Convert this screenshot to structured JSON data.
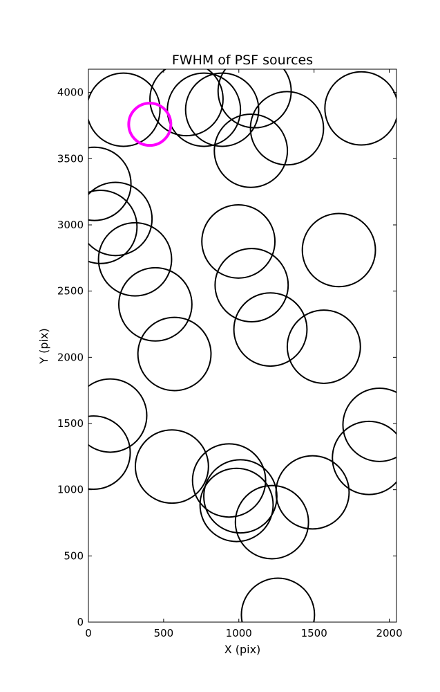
{
  "chart_data": {
    "type": "scatter",
    "title": "FWHM of PSF sources",
    "xlabel": "X (pix)",
    "ylabel": "Y (pix)",
    "xlim": [
      0,
      2048
    ],
    "ylim": [
      0,
      4176
    ],
    "xticks": [
      0,
      500,
      1000,
      1500,
      2000
    ],
    "yticks": [
      0,
      500,
      1000,
      1500,
      2000,
      2500,
      3000,
      3500,
      4000
    ],
    "grid": false,
    "marker": "open circle",
    "series": [
      {
        "color": "#000000",
        "points": [
          {
            "x": 233,
            "y": 3870,
            "r": 243
          },
          {
            "x": 652,
            "y": 3950,
            "r": 243
          },
          {
            "x": 768,
            "y": 3870,
            "r": 243
          },
          {
            "x": 889,
            "y": 3870,
            "r": 243
          },
          {
            "x": 1105,
            "y": 4010,
            "r": 243
          },
          {
            "x": 1320,
            "y": 3730,
            "r": 243
          },
          {
            "x": 1080,
            "y": 3560,
            "r": 243
          },
          {
            "x": 1815,
            "y": 3880,
            "r": 243
          },
          {
            "x": 40,
            "y": 3310,
            "r": 243
          },
          {
            "x": 180,
            "y": 3045,
            "r": 243
          },
          {
            "x": 80,
            "y": 2985,
            "r": 243
          },
          {
            "x": 310,
            "y": 2740,
            "r": 243
          },
          {
            "x": 445,
            "y": 2400,
            "r": 243
          },
          {
            "x": 572,
            "y": 2025,
            "r": 243
          },
          {
            "x": 997,
            "y": 2875,
            "r": 243
          },
          {
            "x": 1085,
            "y": 2545,
            "r": 243
          },
          {
            "x": 1210,
            "y": 2210,
            "r": 243
          },
          {
            "x": 1565,
            "y": 2080,
            "r": 243
          },
          {
            "x": 1665,
            "y": 2810,
            "r": 243
          },
          {
            "x": 145,
            "y": 1560,
            "r": 243
          },
          {
            "x": 35,
            "y": 1280,
            "r": 243
          },
          {
            "x": 555,
            "y": 1175,
            "r": 243
          },
          {
            "x": 935,
            "y": 1070,
            "r": 243
          },
          {
            "x": 1010,
            "y": 950,
            "r": 243
          },
          {
            "x": 985,
            "y": 885,
            "r": 243
          },
          {
            "x": 1220,
            "y": 755,
            "r": 243
          },
          {
            "x": 1490,
            "y": 980,
            "r": 243
          },
          {
            "x": 1865,
            "y": 1240,
            "r": 243
          },
          {
            "x": 1935,
            "y": 1490,
            "r": 243
          },
          {
            "x": 1260,
            "y": 55,
            "r": 243
          }
        ]
      },
      {
        "color": "#ff00ff",
        "points": [
          {
            "x": 408,
            "y": 3760,
            "r": 140
          }
        ]
      }
    ]
  }
}
